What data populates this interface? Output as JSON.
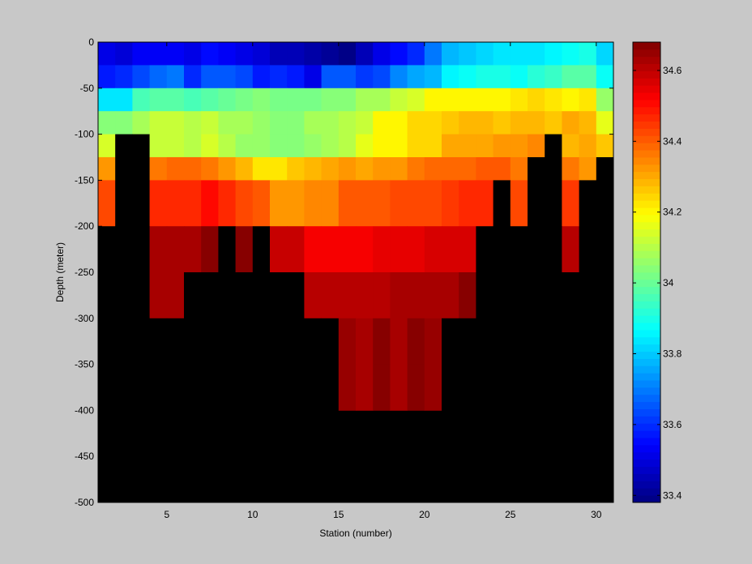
{
  "chart_data": {
    "type": "heatmap",
    "xlabel": "Station (number)",
    "ylabel": "Depth (meter)",
    "xlim": [
      1,
      31
    ],
    "ylim": [
      -500,
      0
    ],
    "x_ticks": [
      5,
      10,
      15,
      20,
      25,
      30
    ],
    "y_ticks": [
      0,
      -50,
      -100,
      -150,
      -200,
      -250,
      -300,
      -350,
      -400,
      -450,
      -500
    ],
    "depths": [
      -12.5,
      -37.5,
      -62.5,
      -87.5,
      -112.5,
      -137.5,
      -175,
      -225,
      -275,
      -325,
      -375
    ],
    "stations": [
      1,
      2,
      3,
      4,
      5,
      6,
      7,
      8,
      9,
      10,
      11,
      12,
      13,
      14,
      15,
      16,
      17,
      18,
      19,
      20,
      21,
      22,
      23,
      24,
      25,
      26,
      27,
      28,
      29,
      30
    ],
    "salinity": [
      [
        33.52,
        33.5,
        33.54,
        33.53,
        33.53,
        33.52,
        33.55,
        33.53,
        33.51,
        33.49,
        33.46,
        33.46,
        33.43,
        33.42,
        33.4,
        33.45,
        33.52,
        33.56,
        33.6,
        33.7,
        33.78,
        33.8,
        33.82,
        33.83,
        33.83,
        33.84,
        33.85,
        33.88,
        33.89,
        33.82
      ],
      [
        33.57,
        33.59,
        33.64,
        33.68,
        33.69,
        33.6,
        33.65,
        33.66,
        33.63,
        33.58,
        33.6,
        33.57,
        33.52,
        33.65,
        33.66,
        33.61,
        33.64,
        33.72,
        33.76,
        33.78,
        33.86,
        33.88,
        33.9,
        33.89,
        33.88,
        33.91,
        33.93,
        33.98,
        33.98,
        33.88
      ],
      [
        33.83,
        33.84,
        33.96,
        33.98,
        33.98,
        33.96,
        33.98,
        33.99,
        34.01,
        34.03,
        34.01,
        34.01,
        34.02,
        34.03,
        34.05,
        34.08,
        34.09,
        34.13,
        34.15,
        34.2,
        34.21,
        34.2,
        34.2,
        34.2,
        34.23,
        34.24,
        34.22,
        34.21,
        34.22,
        34.06
      ],
      [
        34.03,
        34.05,
        34.08,
        34.12,
        34.12,
        34.1,
        34.12,
        34.09,
        34.08,
        34.06,
        34.04,
        34.04,
        34.08,
        34.09,
        34.11,
        34.13,
        34.2,
        34.2,
        34.25,
        34.25,
        34.26,
        34.28,
        34.28,
        34.27,
        34.29,
        34.28,
        34.26,
        34.3,
        34.28,
        34.17
      ],
      [
        34.15,
        null,
        null,
        34.13,
        34.13,
        34.1,
        34.15,
        34.1,
        34.07,
        34.06,
        34.05,
        34.05,
        34.07,
        34.08,
        34.1,
        34.16,
        34.2,
        34.2,
        34.25,
        34.25,
        34.3,
        34.31,
        34.31,
        34.32,
        34.33,
        34.35,
        null,
        34.28,
        34.31,
        34.26
      ],
      [
        34.33,
        null,
        null,
        34.37,
        34.38,
        34.38,
        34.37,
        34.32,
        34.28,
        34.23,
        34.23,
        34.26,
        34.28,
        34.3,
        34.32,
        34.3,
        34.33,
        34.33,
        34.36,
        34.38,
        34.39,
        34.39,
        34.4,
        34.4,
        34.36,
        null,
        null,
        34.37,
        34.33,
        null
      ],
      [
        34.42,
        null,
        null,
        34.47,
        34.47,
        34.47,
        34.5,
        34.46,
        34.43,
        34.4,
        34.32,
        34.32,
        34.35,
        34.35,
        34.41,
        34.41,
        34.4,
        34.43,
        34.43,
        34.43,
        34.45,
        34.46,
        34.46,
        null,
        34.43,
        null,
        null,
        34.44,
        null,
        null
      ],
      [
        null,
        null,
        null,
        34.62,
        34.62,
        34.62,
        34.66,
        null,
        34.66,
        null,
        34.58,
        34.58,
        34.53,
        34.53,
        34.53,
        34.53,
        34.55,
        34.55,
        34.55,
        34.56,
        34.56,
        34.56,
        null,
        null,
        null,
        null,
        null,
        34.6,
        null,
        null
      ],
      [
        null,
        null,
        null,
        34.62,
        34.62,
        null,
        null,
        null,
        null,
        null,
        null,
        null,
        34.6,
        34.6,
        34.6,
        34.6,
        34.6,
        34.62,
        34.62,
        34.62,
        34.62,
        34.66,
        null,
        null,
        null,
        null,
        null,
        null,
        null,
        null
      ],
      [
        null,
        null,
        null,
        null,
        null,
        null,
        null,
        null,
        null,
        null,
        null,
        null,
        null,
        null,
        34.65,
        34.63,
        34.66,
        34.63,
        34.66,
        34.64,
        null,
        null,
        null,
        null,
        null,
        null,
        null,
        null,
        null,
        null
      ],
      [
        null,
        null,
        null,
        null,
        null,
        null,
        null,
        null,
        null,
        null,
        null,
        null,
        null,
        null,
        34.65,
        34.63,
        34.66,
        34.63,
        34.66,
        34.64,
        null,
        null,
        null,
        null,
        null,
        null,
        null,
        null,
        null,
        null
      ]
    ],
    "colorbar": {
      "min": 33.38,
      "max": 34.68,
      "ticks": [
        33.4,
        33.6,
        33.8,
        34,
        34.2,
        34.4,
        34.6
      ],
      "tick_labels": [
        "33.4",
        "33.6",
        "33.8",
        "34",
        "34.2",
        "34.4",
        "34.6"
      ],
      "colormap": "jet",
      "levels": 64
    },
    "colors": {
      "missing": "#000000",
      "background": "#c8c8c8"
    }
  }
}
